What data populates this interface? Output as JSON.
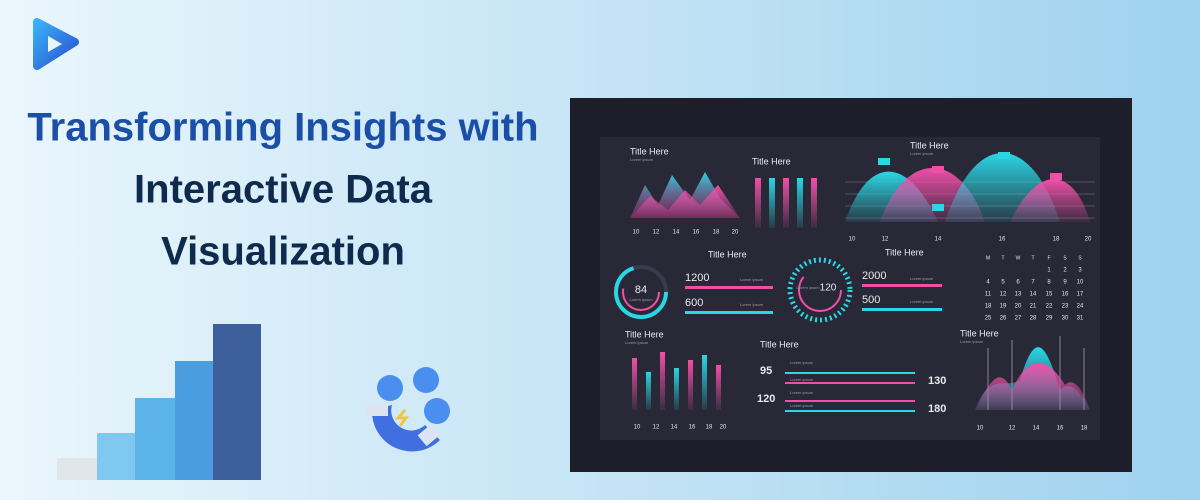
{
  "headline": {
    "line1": "Transforming Insights with",
    "line2": "Interactive Data",
    "line3": "Visualization"
  },
  "dashboard": {
    "mountain_panel": {
      "title": "Title Here",
      "subtitle": "Lorem ipsum",
      "x_labels": [
        "10",
        "12",
        "14",
        "16",
        "18",
        "20"
      ]
    },
    "bars_panel": {
      "title": "Title Here"
    },
    "wave_panel": {
      "title": "Title Here",
      "subtitle": "Lorem ipsum",
      "x_labels": [
        "10",
        "12",
        "14",
        "16",
        "18",
        "20"
      ]
    },
    "gauge_panel_1": {
      "gauge": "84",
      "gauge_caption": "Lorem ipsum",
      "title": "Title Here",
      "stats": [
        "1200",
        "600"
      ],
      "legend": [
        "Lorem ipsum",
        "Lorem ipsum"
      ]
    },
    "gauge_panel_2": {
      "gauge": "120",
      "gauge_caption": "Lorem ipsum",
      "title": "Title Here",
      "stats": [
        "2000",
        "500"
      ],
      "legend": [
        "Lorem ipsum",
        "Lorem ipsum"
      ]
    },
    "calendar": {
      "weekdays": [
        "M",
        "T",
        "W",
        "T",
        "F",
        "S",
        "S"
      ],
      "weeks": [
        [
          null,
          null,
          null,
          null,
          "1",
          "2",
          "3"
        ],
        [
          "4",
          "5",
          "6",
          "7",
          "8",
          "9",
          "10"
        ],
        [
          "11",
          "12",
          "13",
          "14",
          "15",
          "16",
          "17"
        ],
        [
          "18",
          "19",
          "20",
          "21",
          "22",
          "23",
          "24"
        ],
        [
          "25",
          "26",
          "27",
          "28",
          "29",
          "30",
          "31"
        ]
      ]
    },
    "histogram_panel": {
      "title": "Title Here",
      "subtitle": "Lorem ipsum",
      "x_labels": [
        "10",
        "12",
        "14",
        "16",
        "18",
        "20"
      ]
    },
    "slider_panel": {
      "title": "Title Here",
      "legend": [
        "Lorem ipsum",
        "Lorem ipsum",
        "Lorem ipsum",
        "Lorem ipsum"
      ],
      "left_values": [
        "95",
        "120"
      ],
      "right_values": [
        "130",
        "180"
      ]
    },
    "area_panel": {
      "title": "Title Here",
      "subtitle": "Lorem ipsum",
      "x_labels": [
        "10",
        "12",
        "14",
        "16",
        "18"
      ]
    }
  }
}
